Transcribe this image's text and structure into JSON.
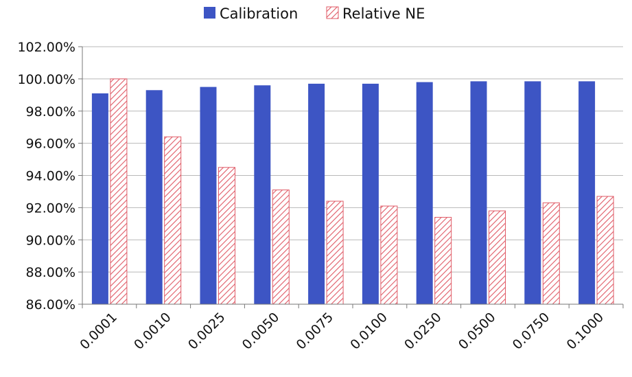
{
  "chart_data": {
    "type": "bar",
    "categories": [
      "0.0001",
      "0.0010",
      "0.0025",
      "0.0050",
      "0.0075",
      "0.0100",
      "0.0250",
      "0.0500",
      "0.0750",
      "0.1000"
    ],
    "series": [
      {
        "name": "Calibration",
        "values": [
          99.1,
          99.3,
          99.5,
          99.6,
          99.7,
          99.7,
          99.8,
          99.85,
          99.85,
          99.85
        ],
        "color": "#3d55c4",
        "pattern": "solid"
      },
      {
        "name": "Relative NE",
        "values": [
          100.0,
          96.4,
          94.5,
          93.1,
          92.4,
          92.1,
          91.4,
          91.8,
          92.3,
          92.7
        ],
        "color": "#e05a66",
        "pattern": "hatched"
      }
    ],
    "y_tick_labels": [
      "86.00%",
      "88.00%",
      "90.00%",
      "92.00%",
      "94.00%",
      "96.00%",
      "98.00%",
      "100.00%",
      "102.00%"
    ],
    "y_ticks": [
      86,
      88,
      90,
      92,
      94,
      96,
      98,
      100,
      102
    ],
    "ylim": [
      86,
      102
    ],
    "grid": true,
    "legend_position": "top-center",
    "title": "",
    "xlabel": "",
    "ylabel": ""
  }
}
